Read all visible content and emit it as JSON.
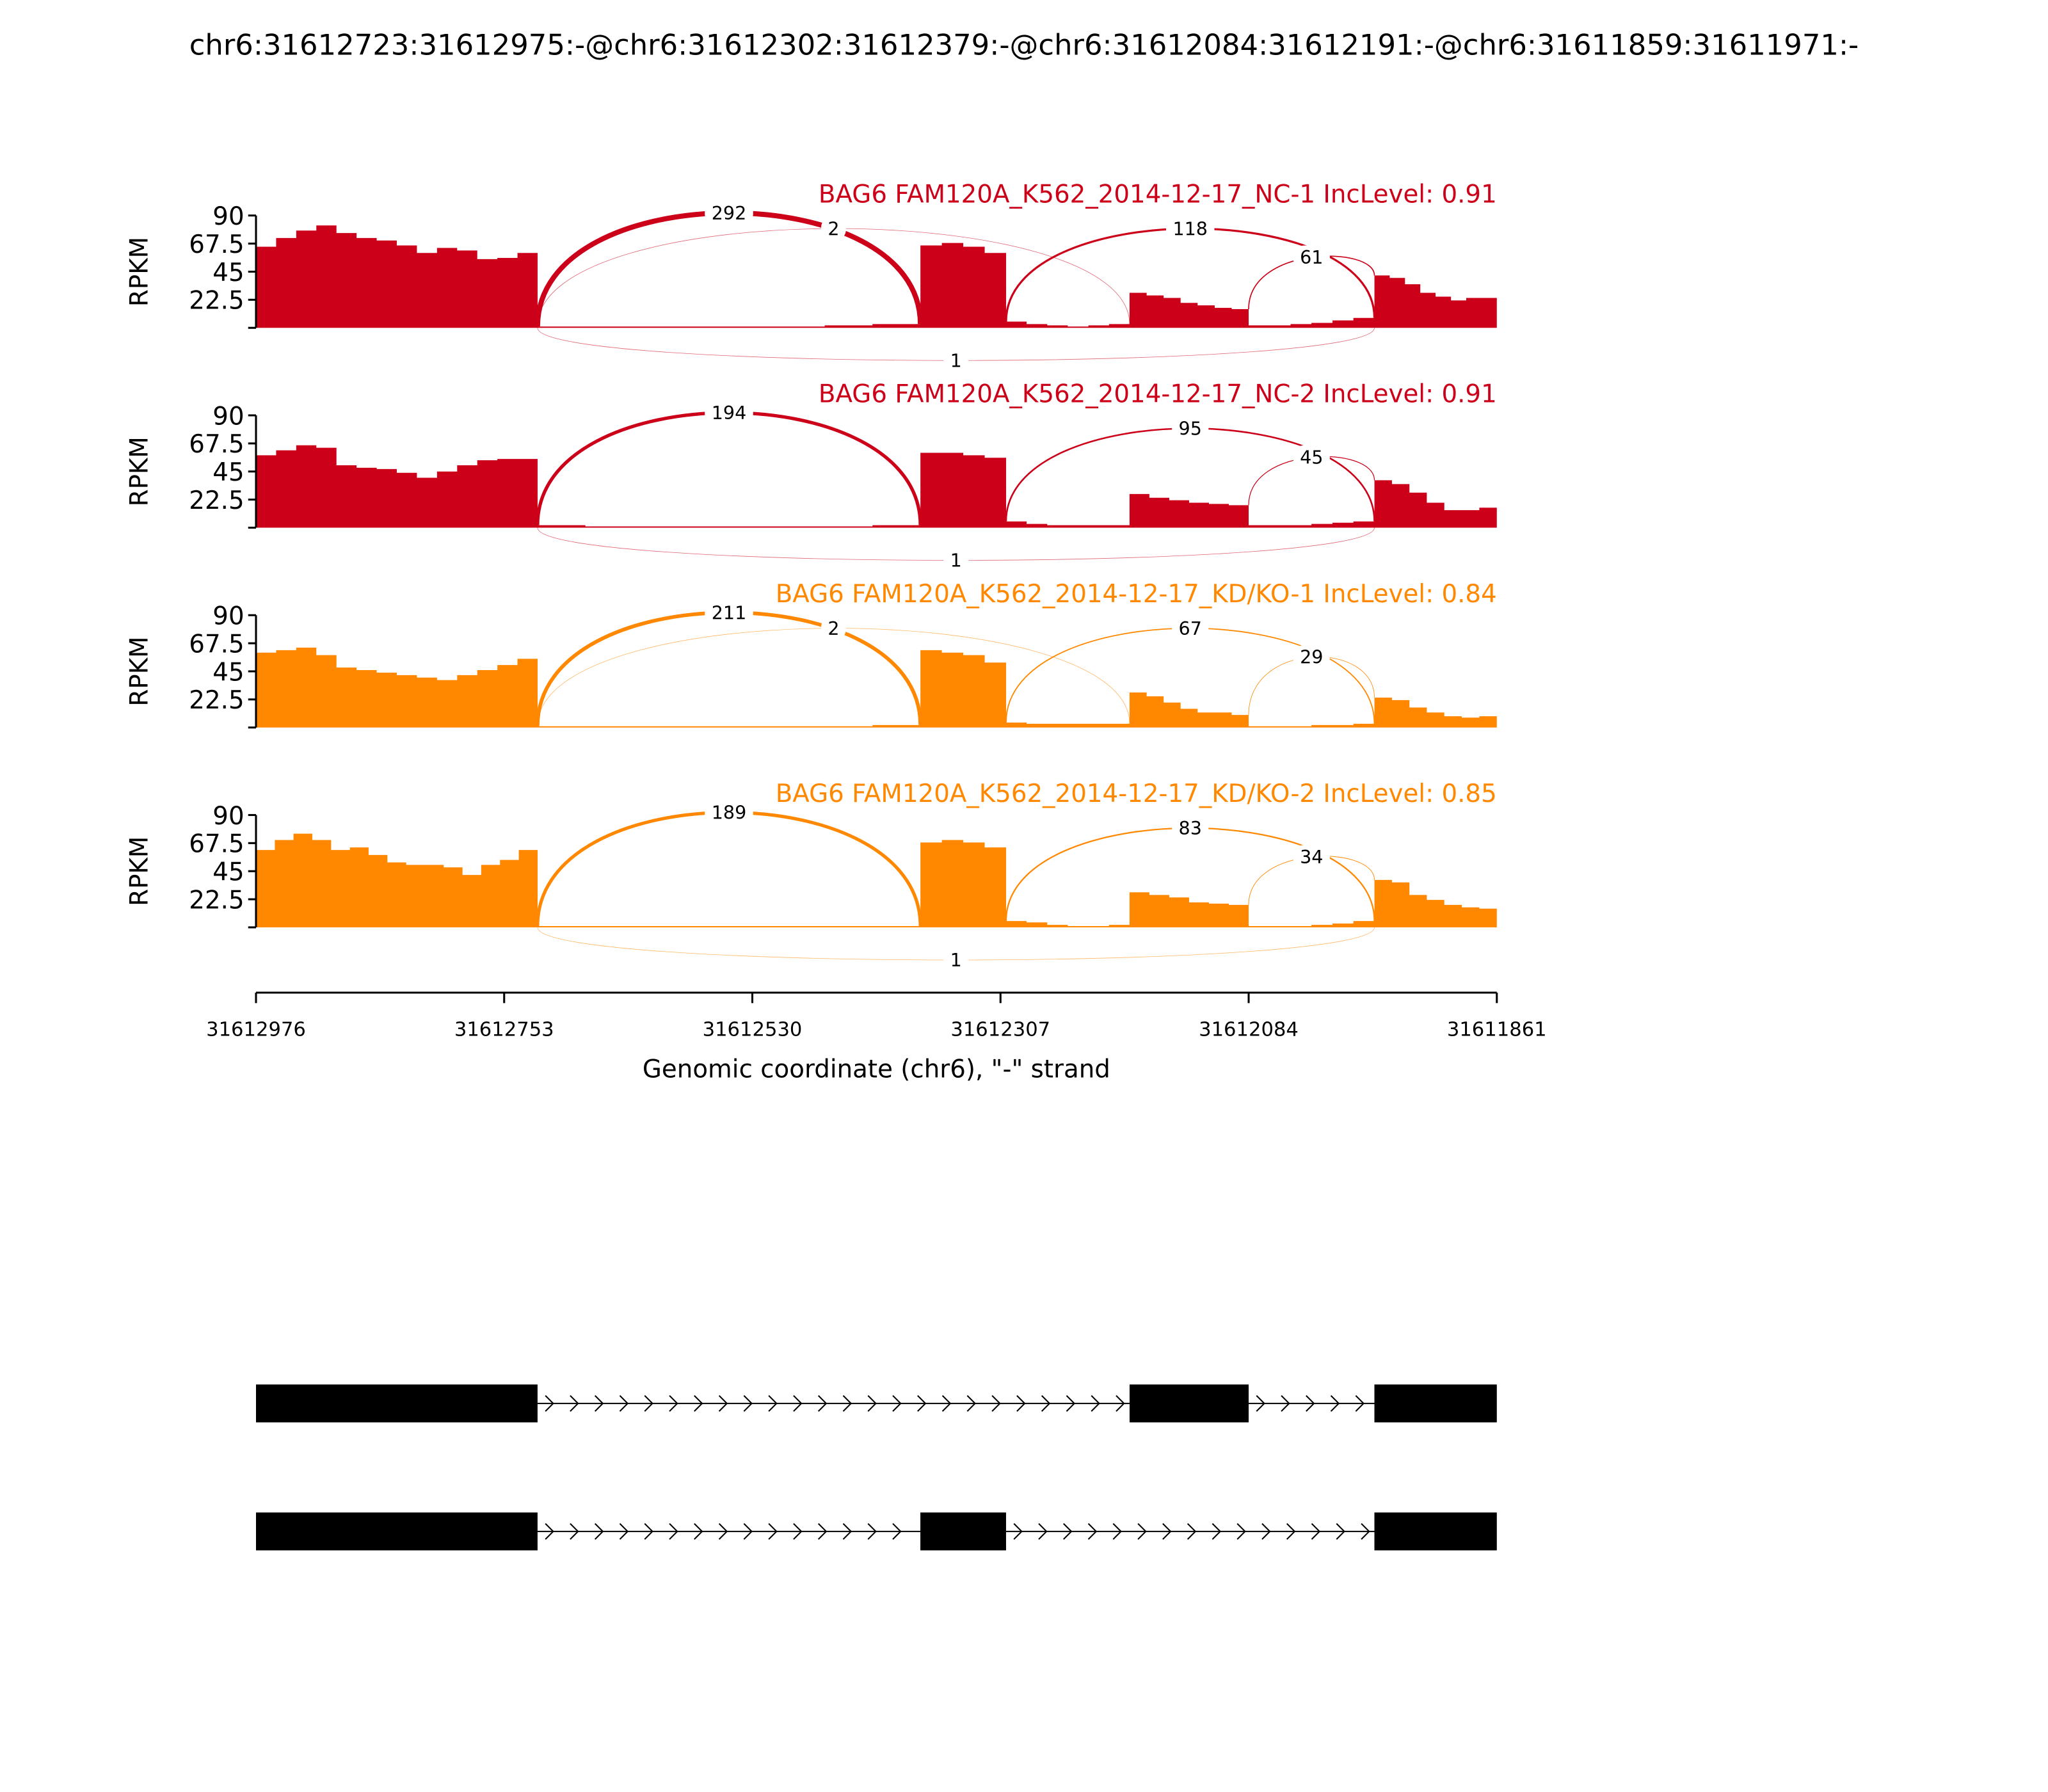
{
  "chart_data": {
    "type": "area",
    "title": "chr6:31612723:31612975:-@chr6:31612302:31612379:-@chr6:31612084:31612191:-@chr6:31611859:31611971:-",
    "xlabel": "Genomic coordinate (chr6), \"-\" strand",
    "ylabel": "RPKM",
    "xlim": [
      31612976,
      31611861
    ],
    "x_ticks": [
      "31612976",
      "31612753",
      "31612530",
      "31612307",
      "31612084",
      "31611861"
    ],
    "x_tick_values": [
      31612976,
      31612753,
      31612530,
      31612307,
      31612084,
      31611861
    ],
    "ylim": [
      0,
      90
    ],
    "y_ticks": [
      "90",
      "67.5",
      "45",
      "22.5"
    ],
    "y_tick_values": [
      90,
      67.5,
      45,
      22.5
    ],
    "colors": {
      "NC": "#cc0018",
      "KD": "#ff8800"
    },
    "panels": [
      {
        "title": "BAG6 FAM120A_K562_2014-12-17_NC-1 IncLevel: 0.91",
        "group": "NC",
        "coverage": [
          {
            "start": 31612976,
            "end": 31612723,
            "values": [
              65,
              72,
              78,
              82,
              76,
              72,
              70,
              66,
              60,
              64,
              62,
              55,
              56,
              60
            ]
          },
          {
            "start": 31612723,
            "end": 31612379,
            "values": [
              1,
              1,
              1,
              1,
              1,
              1,
              2,
              3
            ]
          },
          {
            "start": 31612379,
            "end": 31612302,
            "values": [
              66,
              68,
              65,
              60
            ]
          },
          {
            "start": 31612302,
            "end": 31612191,
            "values": [
              5,
              3,
              2,
              1,
              2,
              3
            ]
          },
          {
            "start": 31612191,
            "end": 31612084,
            "values": [
              28,
              26,
              24,
              20,
              18,
              16,
              15
            ]
          },
          {
            "start": 31612084,
            "end": 31611971,
            "values": [
              2,
              2,
              3,
              4,
              6,
              8
            ]
          },
          {
            "start": 31611971,
            "end": 31611861,
            "values": [
              42,
              40,
              35,
              28,
              25,
              22,
              24,
              24
            ]
          }
        ],
        "junctions": [
          {
            "from": 31612723,
            "to": 31612379,
            "count": "292",
            "side": "top",
            "level": 0
          },
          {
            "from": 31612723,
            "to": 31612191,
            "count": "2",
            "side": "top",
            "level": 1
          },
          {
            "from": 31612302,
            "to": 31611971,
            "count": "118",
            "side": "top",
            "level": 1
          },
          {
            "from": 31612084,
            "to": 31611971,
            "count": "61",
            "side": "top",
            "level": 2
          },
          {
            "from": 31612723,
            "to": 31611971,
            "count": "1",
            "side": "bottom",
            "level": 0
          }
        ]
      },
      {
        "title": "BAG6 FAM120A_K562_2014-12-17_NC-2 IncLevel: 0.91",
        "group": "NC",
        "coverage": [
          {
            "start": 31612976,
            "end": 31612723,
            "values": [
              58,
              62,
              66,
              64,
              50,
              48,
              47,
              44,
              40,
              45,
              50,
              54,
              55,
              55
            ]
          },
          {
            "start": 31612723,
            "end": 31612379,
            "values": [
              2,
              1,
              1,
              1,
              1,
              1,
              1,
              2
            ]
          },
          {
            "start": 31612379,
            "end": 31612302,
            "values": [
              60,
              60,
              58,
              56
            ]
          },
          {
            "start": 31612302,
            "end": 31612191,
            "values": [
              5,
              3,
              2,
              2,
              2,
              2
            ]
          },
          {
            "start": 31612191,
            "end": 31612084,
            "values": [
              27,
              24,
              22,
              20,
              19,
              18
            ]
          },
          {
            "start": 31612084,
            "end": 31611971,
            "values": [
              2,
              2,
              2,
              3,
              4,
              5
            ]
          },
          {
            "start": 31611971,
            "end": 31611861,
            "values": [
              38,
              35,
              28,
              20,
              14,
              14,
              16
            ]
          }
        ],
        "junctions": [
          {
            "from": 31612723,
            "to": 31612379,
            "count": "194",
            "side": "top",
            "level": 0
          },
          {
            "from": 31612302,
            "to": 31611971,
            "count": "95",
            "side": "top",
            "level": 1
          },
          {
            "from": 31612084,
            "to": 31611971,
            "count": "45",
            "side": "top",
            "level": 2
          },
          {
            "from": 31612723,
            "to": 31611971,
            "count": "1",
            "side": "bottom",
            "level": 0
          }
        ]
      },
      {
        "title": "BAG6 FAM120A_K562_2014-12-17_KD/KO-1 IncLevel: 0.84",
        "group": "KD",
        "coverage": [
          {
            "start": 31612976,
            "end": 31612723,
            "values": [
              60,
              62,
              64,
              58,
              48,
              46,
              44,
              42,
              40,
              38,
              42,
              46,
              50,
              55
            ]
          },
          {
            "start": 31612723,
            "end": 31612379,
            "values": [
              1,
              1,
              1,
              1,
              1,
              1,
              1,
              2
            ]
          },
          {
            "start": 31612379,
            "end": 31612302,
            "values": [
              62,
              60,
              58,
              52
            ]
          },
          {
            "start": 31612302,
            "end": 31612191,
            "values": [
              4,
              3,
              3,
              3,
              3,
              3
            ]
          },
          {
            "start": 31612191,
            "end": 31612084,
            "values": [
              28,
              25,
              20,
              15,
              12,
              12,
              10
            ]
          },
          {
            "start": 31612084,
            "end": 31611971,
            "values": [
              1,
              1,
              1,
              2,
              2,
              3
            ]
          },
          {
            "start": 31611971,
            "end": 31611861,
            "values": [
              24,
              22,
              16,
              12,
              9,
              8,
              9
            ]
          }
        ],
        "junctions": [
          {
            "from": 31612723,
            "to": 31612379,
            "count": "211",
            "side": "top",
            "level": 0
          },
          {
            "from": 31612723,
            "to": 31612191,
            "count": "2",
            "side": "top",
            "level": 1
          },
          {
            "from": 31612302,
            "to": 31611971,
            "count": "67",
            "side": "top",
            "level": 1
          },
          {
            "from": 31612084,
            "to": 31611971,
            "count": "29",
            "side": "top",
            "level": 2
          }
        ]
      },
      {
        "title": "BAG6 FAM120A_K562_2014-12-17_KD/KO-2 IncLevel: 0.85",
        "group": "KD",
        "coverage": [
          {
            "start": 31612976,
            "end": 31612723,
            "values": [
              62,
              70,
              75,
              70,
              62,
              64,
              58,
              52,
              50,
              50,
              48,
              42,
              50,
              54,
              62
            ]
          },
          {
            "start": 31612723,
            "end": 31612379,
            "values": [
              1,
              1,
              1,
              1,
              1,
              1,
              1,
              1
            ]
          },
          {
            "start": 31612379,
            "end": 31612302,
            "values": [
              68,
              70,
              68,
              64
            ]
          },
          {
            "start": 31612302,
            "end": 31612191,
            "values": [
              5,
              4,
              2,
              1,
              1,
              2
            ]
          },
          {
            "start": 31612191,
            "end": 31612084,
            "values": [
              28,
              26,
              24,
              20,
              19,
              18
            ]
          },
          {
            "start": 31612084,
            "end": 31611971,
            "values": [
              1,
              1,
              1,
              2,
              3,
              5
            ]
          },
          {
            "start": 31611971,
            "end": 31611861,
            "values": [
              38,
              36,
              26,
              22,
              18,
              16,
              15
            ]
          }
        ],
        "junctions": [
          {
            "from": 31612723,
            "to": 31612379,
            "count": "189",
            "side": "top",
            "level": 0
          },
          {
            "from": 31612302,
            "to": 31611971,
            "count": "83",
            "side": "top",
            "level": 1
          },
          {
            "from": 31612084,
            "to": 31611971,
            "count": "34",
            "side": "top",
            "level": 2
          },
          {
            "from": 31612723,
            "to": 31611971,
            "count": "1",
            "side": "bottom",
            "level": 0
          }
        ]
      }
    ],
    "transcripts": [
      {
        "exons": [
          [
            31612976,
            31612723
          ],
          [
            31612191,
            31612084
          ],
          [
            31611971,
            31611861
          ]
        ]
      },
      {
        "exons": [
          [
            31612976,
            31612723
          ],
          [
            31612379,
            31612302
          ],
          [
            31611971,
            31611861
          ]
        ]
      }
    ]
  }
}
